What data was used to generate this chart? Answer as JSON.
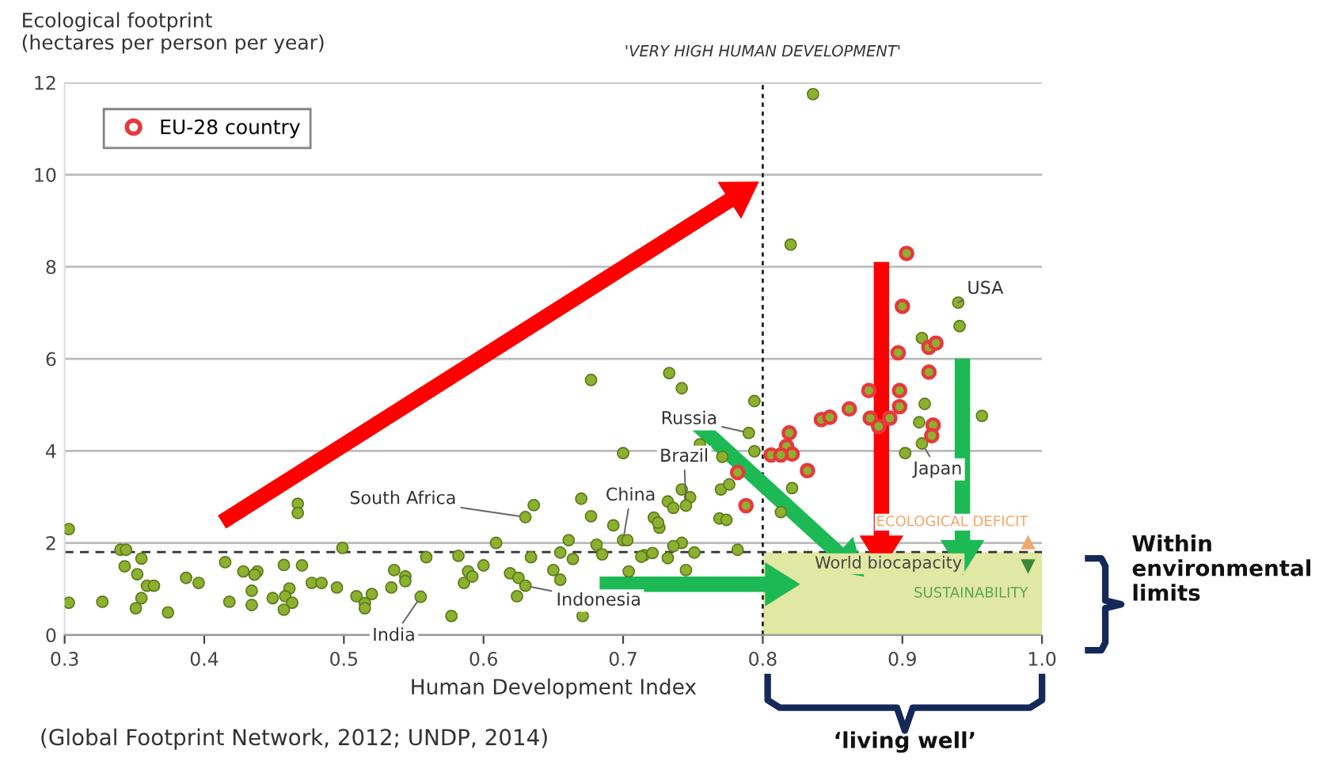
{
  "chart_data": {
    "type": "scatter",
    "xlabel": "Human Development Index",
    "ylabel": "Ecological footprint\n(hectares per person per year)",
    "xlim": [
      0.3,
      1.0
    ],
    "ylim": [
      0,
      12
    ],
    "xticks": [
      0.3,
      0.4,
      0.5,
      0.6,
      0.7,
      0.8,
      0.9,
      {
        "value": 1.0,
        "label": "1.0"
      }
    ],
    "yticks": [
      0,
      2,
      4,
      6,
      8,
      10,
      12
    ],
    "grid": "y",
    "legend": "top left",
    "marker": "circle",
    "series": [
      {
        "color": "#8db030",
        "x": [
          0.303,
          0.303,
          0.327,
          0.34,
          0.344,
          0.343,
          0.355,
          0.352,
          0.355,
          0.351,
          0.359,
          0.364,
          0.374,
          0.387,
          0.396,
          0.415,
          0.418,
          0.428,
          0.438,
          0.434,
          0.436,
          0.434,
          0.449,
          0.457,
          0.461,
          0.458,
          0.463,
          0.457,
          0.467,
          0.467,
          0.47,
          0.477,
          0.484,
          0.495,
          0.499,
          0.509,
          0.515,
          0.515,
          0.52,
          0.534,
          0.536,
          0.544,
          0.544,
          0.555,
          0.559,
          0.577,
          0.582,
          0.589,
          0.586,
          0.592,
          0.6,
          0.609,
          0.619,
          0.625,
          0.624,
          0.63,
          0.63,
          0.636,
          0.634,
          0.65,
          0.655,
          0.655,
          0.661,
          0.664,
          0.67,
          0.677,
          0.677,
          0.671,
          0.681,
          0.685,
          0.693,
          0.7,
          0.7,
          0.703,
          0.704,
          0.715,
          0.722,
          0.726,
          0.733,
          0.742,
          0.794,
          0.79,
          0.755,
          0.794,
          0.771,
          0.732,
          0.742,
          0.748,
          0.745,
          0.736,
          0.725,
          0.77,
          0.776,
          0.769,
          0.774,
          0.742,
          0.736,
          0.751,
          0.713,
          0.721,
          0.732,
          0.745,
          0.782,
          0.813,
          0.821,
          0.916,
          0.912,
          0.914,
          0.902,
          0.957,
          0.836,
          0.82,
          0.94,
          0.941,
          0.914
        ],
        "values": [
          2.3,
          0.7,
          0.72,
          1.85,
          1.85,
          1.49,
          1.66,
          1.32,
          0.8,
          0.58,
          1.07,
          1.07,
          0.49,
          1.24,
          1.13,
          1.58,
          0.72,
          1.38,
          1.38,
          0.96,
          1.31,
          0.65,
          0.8,
          1.52,
          1.01,
          0.84,
          0.7,
          0.55,
          2.85,
          2.65,
          1.51,
          1.13,
          1.13,
          1.03,
          1.89,
          0.84,
          0.69,
          0.58,
          0.89,
          1.03,
          1.41,
          1.27,
          1.17,
          0.83,
          1.69,
          0.41,
          1.72,
          1.38,
          1.13,
          1.27,
          1.51,
          2.0,
          1.34,
          1.24,
          0.84,
          1.07,
          2.56,
          2.82,
          1.69,
          1.41,
          1.2,
          1.79,
          2.06,
          1.65,
          2.96,
          2.58,
          5.54,
          0.41,
          1.96,
          1.75,
          2.38,
          3.95,
          2.06,
          2.06,
          1.38,
          1.73,
          2.55,
          2.33,
          5.69,
          5.36,
          5.08,
          4.39,
          4.14,
          3.99,
          3.87,
          2.9,
          3.16,
          2.99,
          2.81,
          2.76,
          2.44,
          3.16,
          3.27,
          2.53,
          2.5,
          2.0,
          1.93,
          1.79,
          1.7,
          1.78,
          1.67,
          1.41,
          1.85,
          2.67,
          3.19,
          5.02,
          4.62,
          4.16,
          3.95,
          4.76,
          11.75,
          8.48,
          7.22,
          6.71,
          6.45
        ]
      },
      {
        "name": "EU-28 country",
        "color": "#e8383d",
        "x": [
          0.782,
          0.788,
          0.806,
          0.819,
          0.817,
          0.821,
          0.813,
          0.832,
          0.842,
          0.848,
          0.862,
          0.876,
          0.877,
          0.883,
          0.891,
          0.898,
          0.898,
          0.919,
          0.922,
          0.921,
          0.903,
          0.9,
          0.919,
          0.924,
          0.897
        ],
        "values": [
          3.53,
          2.81,
          3.91,
          4.39,
          4.1,
          3.93,
          3.91,
          3.57,
          4.68,
          4.73,
          4.91,
          5.31,
          4.71,
          4.53,
          4.71,
          5.31,
          4.96,
          5.71,
          4.56,
          4.33,
          8.29,
          7.14,
          6.25,
          6.34,
          6.13
        ]
      }
    ],
    "ref_lines": [
      {
        "axis": "y",
        "value": 1.8,
        "label": "World biocapacity",
        "line_style": "dashed",
        "color": "#333333"
      },
      {
        "axis": "x",
        "value": 0.8,
        "label": "'VERY HIGH HUMAN DEVELOPMENT'",
        "line_style": "dotted",
        "color": "#222222"
      }
    ],
    "bands": [
      {
        "axis": "x",
        "from": 0.8,
        "to": 1.0,
        "color": "#e1e8a4"
      }
    ],
    "annotations": [
      {
        "text": "USA",
        "x": 0.94,
        "y": 7.22
      },
      {
        "text": "Japan",
        "x": 0.914,
        "y": 4.16
      },
      {
        "text": "Russia",
        "x": 0.79,
        "y": 4.39
      },
      {
        "text": "Brazil",
        "x": 0.745,
        "y": 2.81
      },
      {
        "text": "China",
        "x": 0.7,
        "y": 2.06
      },
      {
        "text": "South Africa",
        "x": 0.63,
        "y": 2.56
      },
      {
        "text": "Indonesia",
        "x": 0.63,
        "y": 1.07
      },
      {
        "text": "India",
        "x": 0.555,
        "y": 0.83
      },
      "ECOLOGICAL DEFICIT",
      "SUSTAINABILITY",
      "Within\nenvironmental\nlimits",
      "‘living well’",
      "(Global Footprint Network, 2012; UNDP, 2014)"
    ]
  }
}
